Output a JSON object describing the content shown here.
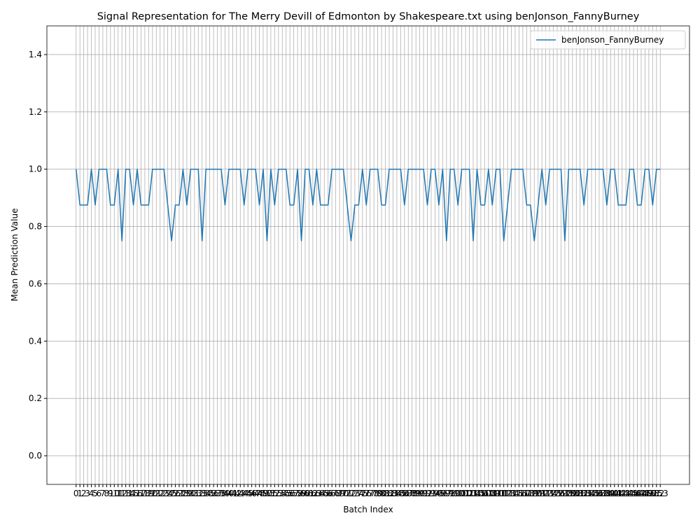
{
  "chart_data": {
    "type": "line",
    "title": "Signal Representation for The Merry Devill of Edmonton by Shakespeare.txt using benJonson_FannyBurney",
    "xlabel": "Batch Index",
    "ylabel": "Mean Prediction Value",
    "x": [
      0,
      1,
      2,
      3,
      4,
      5,
      6,
      7,
      8,
      9,
      10,
      11,
      12,
      13,
      14,
      15,
      16,
      17,
      18,
      19,
      20,
      21,
      22,
      23,
      24,
      25,
      26,
      27,
      28,
      29,
      30,
      31,
      32,
      33,
      34,
      35,
      36,
      37,
      38,
      39,
      40,
      41,
      42,
      43,
      44,
      45,
      46,
      47,
      48,
      49,
      50,
      51,
      52,
      53,
      54,
      55,
      56,
      57,
      58,
      59,
      60,
      61,
      62,
      63,
      64,
      65,
      66,
      67,
      68,
      69,
      70,
      71,
      72,
      73,
      74,
      75,
      76,
      77,
      78,
      79,
      80,
      81,
      82,
      83,
      84,
      85,
      86,
      87,
      88,
      89,
      90,
      91,
      92,
      93,
      94,
      95,
      96,
      97,
      98,
      99,
      100,
      101,
      102,
      103,
      104,
      105,
      106,
      107,
      108,
      109,
      110,
      111,
      112,
      113,
      114,
      115,
      116,
      117,
      118,
      119,
      120,
      121,
      122,
      123,
      124,
      125,
      126,
      127,
      128,
      129,
      130,
      131,
      132,
      133,
      134,
      135,
      136,
      137,
      138,
      139,
      140,
      141,
      142,
      143,
      144,
      145,
      146,
      147,
      148,
      149,
      150,
      151,
      152,
      153
    ],
    "series": [
      {
        "name": "benJonson_FannyBurney",
        "color": "#1f77b4",
        "values": [
          1,
          0.875,
          0.875,
          0.875,
          1,
          0.875,
          1,
          1,
          1,
          0.875,
          0.875,
          1,
          0.75,
          1,
          1,
          0.875,
          1,
          0.875,
          0.875,
          0.875,
          1,
          1,
          1,
          1,
          0.875,
          0.75,
          0.875,
          0.875,
          1,
          0.875,
          1,
          1,
          1,
          0.75,
          1,
          1,
          1,
          1,
          1,
          0.875,
          1,
          1,
          1,
          1,
          0.875,
          1,
          1,
          1,
          0.875,
          1,
          0.75,
          1,
          0.875,
          1,
          1,
          1,
          0.875,
          0.875,
          1,
          0.75,
          1,
          1,
          0.875,
          1,
          0.875,
          0.875,
          0.875,
          1,
          1,
          1,
          1,
          0.875,
          0.75,
          0.875,
          0.875,
          1,
          0.875,
          1,
          1,
          1,
          0.875,
          0.875,
          1,
          1,
          1,
          1,
          0.875,
          1,
          1,
          1,
          1,
          1,
          0.875,
          1,
          1,
          0.875,
          1,
          0.75,
          1,
          1,
          0.875,
          1,
          1,
          1,
          0.75,
          1,
          0.875,
          0.875,
          1,
          0.875,
          1,
          1,
          0.75,
          0.875,
          1,
          1,
          1,
          1,
          0.875,
          0.875,
          0.75,
          0.875,
          1,
          0.875,
          1,
          1,
          1,
          1,
          0.75,
          1,
          1,
          1,
          1,
          0.875,
          1,
          1,
          1,
          1,
          1,
          0.875,
          1,
          1,
          0.875,
          0.875,
          0.875,
          1,
          1,
          0.875,
          0.875,
          1,
          1,
          0.875,
          1,
          1
        ]
      }
    ],
    "xlim": [
      -7.65,
      160.65
    ],
    "xticks": [
      0,
      1,
      2,
      3,
      4,
      5,
      6,
      7,
      8,
      9,
      10,
      11,
      12,
      13,
      14,
      15,
      16,
      17,
      18,
      19,
      20,
      21,
      22,
      23,
      24,
      25,
      26,
      27,
      28,
      29,
      30,
      31,
      32,
      33,
      34,
      35,
      36,
      37,
      38,
      39,
      40,
      41,
      42,
      43,
      44,
      45,
      46,
      47,
      48,
      49,
      50,
      51,
      52,
      53,
      54,
      55,
      56,
      57,
      58,
      59,
      60,
      61,
      62,
      63,
      64,
      65,
      66,
      67,
      68,
      69,
      70,
      71,
      72,
      73,
      74,
      75,
      76,
      77,
      78,
      79,
      80,
      81,
      82,
      83,
      84,
      85,
      86,
      87,
      88,
      89,
      90,
      91,
      92,
      93,
      94,
      95,
      96,
      97,
      98,
      99,
      100,
      101,
      102,
      103,
      104,
      105,
      106,
      107,
      108,
      109,
      110,
      111,
      112,
      113,
      114,
      115,
      116,
      117,
      118,
      119,
      120,
      121,
      122,
      123,
      124,
      125,
      126,
      127,
      128,
      129,
      130,
      131,
      132,
      133,
      134,
      135,
      136,
      137,
      138,
      139,
      140,
      141,
      142,
      143,
      144,
      145,
      146,
      147,
      148,
      149,
      150,
      151,
      152,
      153
    ],
    "ylim": [
      -0.1,
      1.5
    ],
    "yticks": [
      {
        "value": 0,
        "label": "0.0"
      },
      {
        "value": 0.2,
        "label": "0.2"
      },
      {
        "value": 0.4,
        "label": "0.4"
      },
      {
        "value": 0.6,
        "label": "0.6"
      },
      {
        "value": 0.8,
        "label": "0.8"
      },
      {
        "value": 1,
        "label": "1.0"
      },
      {
        "value": 1.2,
        "label": "1.2"
      },
      {
        "value": 1.4,
        "label": "1.4"
      }
    ],
    "grid": true,
    "legend": "upper right"
  }
}
